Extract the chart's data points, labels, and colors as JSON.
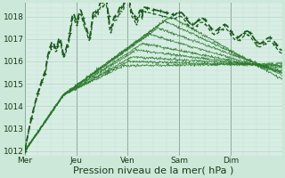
{
  "xlabel": "Pression niveau de la mer( hPa )",
  "background_color": "#cce8d8",
  "plot_bg_color": "#d8ede4",
  "grid_color_major": "#aacfbf",
  "grid_color_minor": "#c0ddd0",
  "line_color_dark": "#1a5c1a",
  "line_color_mid": "#2a7a2a",
  "ylim": [
    1011.8,
    1018.6
  ],
  "xlim": [
    0,
    120
  ],
  "day_labels": [
    "Mer",
    "Jeu",
    "Ven",
    "Sam",
    "Dim"
  ],
  "day_positions": [
    0,
    24,
    48,
    72,
    96
  ],
  "yticks": [
    1012,
    1013,
    1014,
    1015,
    1016,
    1017,
    1018
  ],
  "ylabel_fontsize": 6.5,
  "xlabel_fontsize": 8
}
